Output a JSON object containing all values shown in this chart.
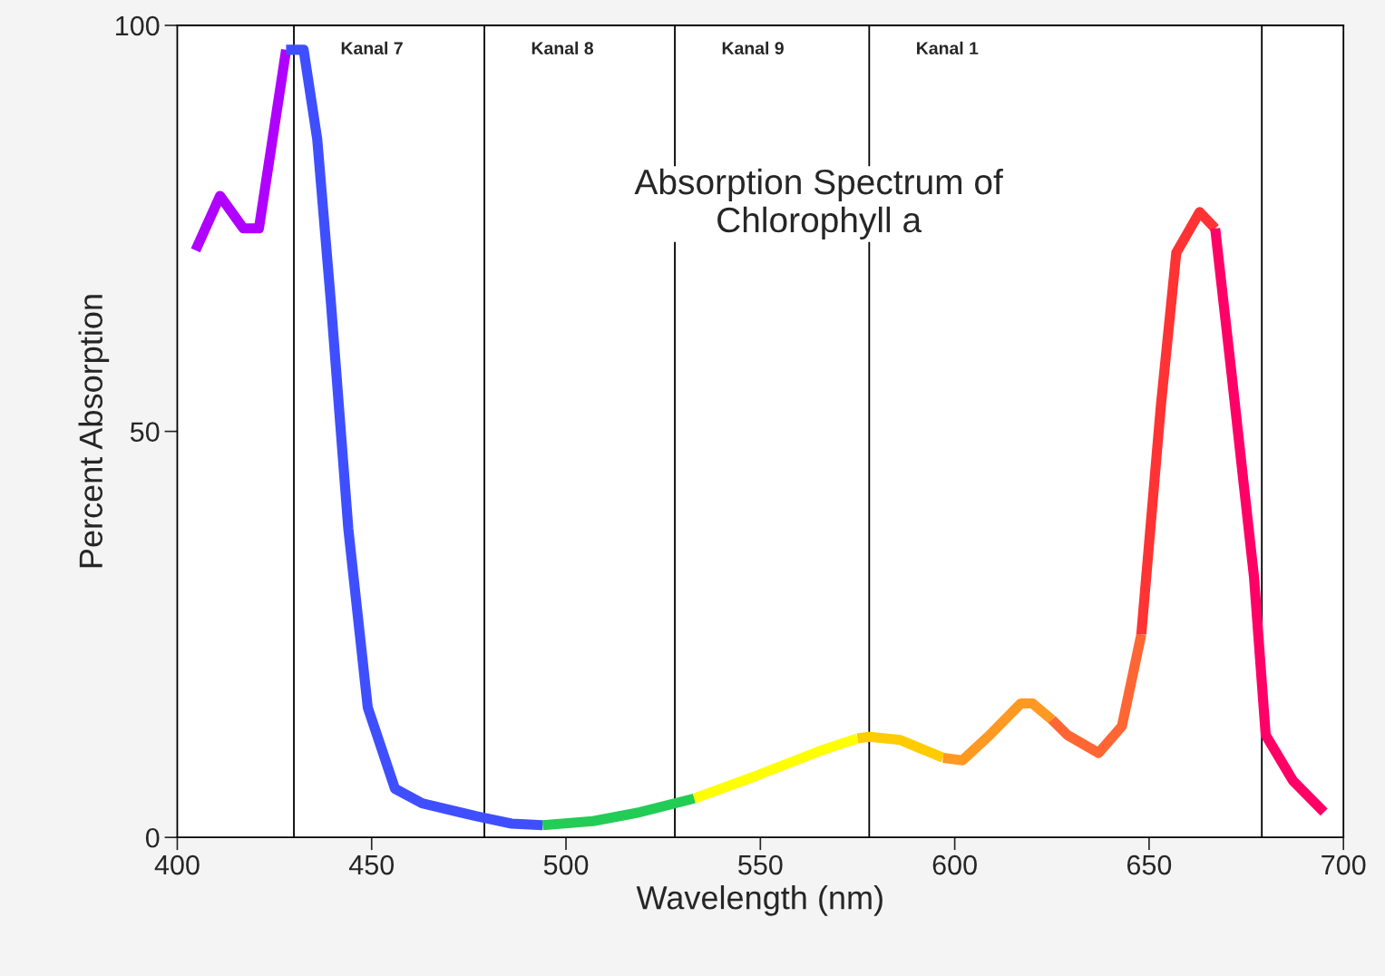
{
  "chart_data": {
    "type": "line",
    "title": "Absorption Spectrum of\nChlorophyll a",
    "xlabel": "Wavelength (nm)",
    "ylabel": "Percent Absorption",
    "xlim": [
      400,
      700
    ],
    "ylim": [
      0,
      100
    ],
    "xticks": [
      400,
      450,
      500,
      550,
      600,
      650,
      700
    ],
    "yticks": [
      0,
      50,
      100
    ],
    "grid": false,
    "series": [
      {
        "color": "#b000ff",
        "x": [
          404.7,
          411,
          417,
          421,
          428
        ],
        "values": [
          72.3,
          79,
          75,
          75,
          97
        ]
      },
      {
        "color": "#3f4fff",
        "x": [
          428,
          432.5,
          436,
          439.5,
          444,
          449,
          456,
          463,
          477,
          486,
          494
        ],
        "values": [
          97,
          97,
          86,
          66,
          38,
          16,
          6,
          4.2,
          2.6,
          1.7,
          1.5
        ]
      },
      {
        "color": "#22cc55",
        "x": [
          494,
          507,
          519,
          533
        ],
        "values": [
          1.5,
          2,
          3.1,
          4.8
        ]
      },
      {
        "color": "#ffff00",
        "x": [
          533,
          549,
          565,
          575
        ],
        "values": [
          4.8,
          7.6,
          10.6,
          12.2
        ]
      },
      {
        "color": "#ffcc00",
        "x": [
          575,
          578,
          586,
          597
        ],
        "values": [
          12.2,
          12.4,
          12,
          9.8
        ]
      },
      {
        "color": "#ff9922",
        "x": [
          597,
          602,
          609,
          617,
          620,
          625
        ],
        "values": [
          9.8,
          9.5,
          12.6,
          16.5,
          16.5,
          14.5
        ]
      },
      {
        "color": "#ff6633",
        "x": [
          625,
          629,
          637,
          643,
          648
        ],
        "values": [
          14.5,
          12.6,
          10.4,
          13.7,
          25
        ]
      },
      {
        "color": "#ff3333",
        "x": [
          648,
          653,
          657,
          663,
          667
        ],
        "values": [
          25,
          53,
          72,
          77,
          75
        ]
      },
      {
        "color": "#ff0066",
        "x": [
          667,
          671,
          677,
          680,
          687,
          695
        ],
        "values": [
          75,
          58,
          32,
          12.6,
          7,
          3.1
        ]
      }
    ],
    "ref_lines": [
      {
        "axis": "x",
        "value": 430,
        "label": "Kanal 7",
        "color": "#000000"
      },
      {
        "axis": "x",
        "value": 479,
        "label": "Kanal 8",
        "color": "#000000"
      },
      {
        "axis": "x",
        "value": 528,
        "label": "Kanal 9",
        "color": "#000000"
      },
      {
        "axis": "x",
        "value": 578,
        "label": "Kanal 1",
        "color": "#000000"
      },
      {
        "axis": "x",
        "value": 679,
        "label": null,
        "color": "#000000"
      }
    ]
  }
}
